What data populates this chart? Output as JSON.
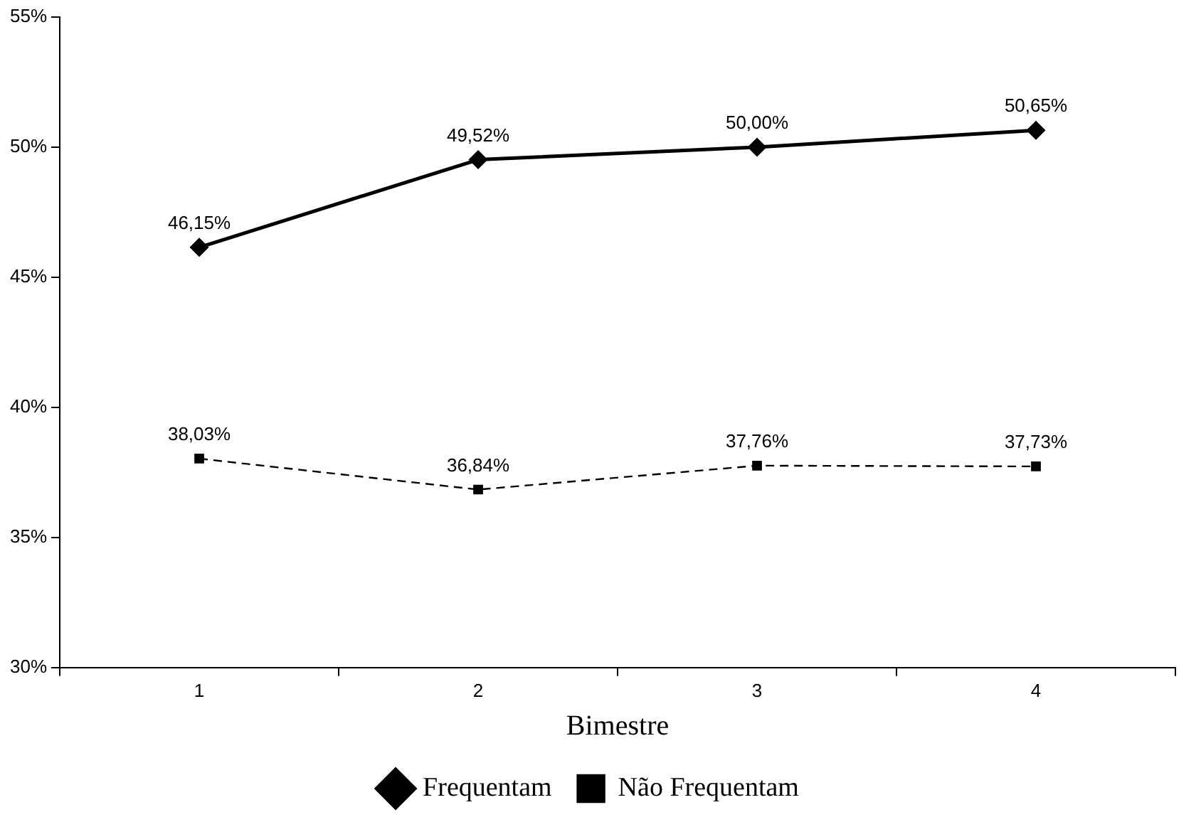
{
  "chart_data": {
    "type": "line",
    "xlabel": "Bimestre",
    "categories": [
      "1",
      "2",
      "3",
      "4"
    ],
    "series": [
      {
        "name": "Frequentam",
        "color": "#000000",
        "values": [
          46.15,
          49.52,
          50.0,
          50.65
        ],
        "value_labels": [
          "46,15%",
          "49,52%",
          "50,00%",
          "50,65%"
        ],
        "marker": "diamond",
        "line_style": "solid"
      },
      {
        "name": "Não Frequentam",
        "color": "#000000",
        "values": [
          38.03,
          36.84,
          37.76,
          37.73
        ],
        "value_labels": [
          "38,03%",
          "36,84%",
          "37,76%",
          "37,73%"
        ],
        "marker": "square",
        "line_style": "dashed"
      }
    ],
    "ylim": [
      30,
      55
    ],
    "yticks": [
      {
        "value": 30,
        "label": "30%"
      },
      {
        "value": 35,
        "label": "35%"
      },
      {
        "value": 40,
        "label": "40%"
      },
      {
        "value": 45,
        "label": "45%"
      },
      {
        "value": 50,
        "label": "50%"
      },
      {
        "value": 55,
        "label": "55%"
      }
    ],
    "grid": false,
    "legend": "bottom"
  }
}
